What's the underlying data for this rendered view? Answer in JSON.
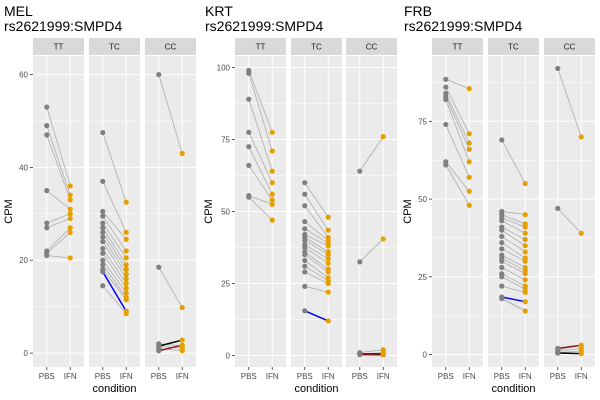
{
  "chart_data": [
    {
      "type": "line",
      "title": "MEL",
      "subtitle": "rs2621999:SMPD4",
      "xlabel": "condition",
      "ylabel": "CPM",
      "ylim": [
        -3,
        64
      ],
      "yticks": [
        0,
        20,
        40,
        60
      ],
      "x_categories": [
        "PBS",
        "IFN"
      ],
      "facets": [
        {
          "label": "TT",
          "pairs": [
            [
              53,
              36
            ],
            [
              49,
              34
            ],
            [
              47,
              33
            ],
            [
              35,
              31
            ],
            [
              28,
              30
            ],
            [
              27,
              29
            ],
            [
              22,
              27
            ],
            [
              21.5,
              26
            ],
            [
              21,
              20.5
            ]
          ],
          "highlights": []
        },
        {
          "label": "TC",
          "pairs": [
            [
              47.5,
              32.5
            ],
            [
              37,
              26
            ],
            [
              30.5,
              24.5
            ],
            [
              29.5,
              22
            ],
            [
              28,
              20.5
            ],
            [
              27,
              19
            ],
            [
              26,
              18
            ],
            [
              25,
              17
            ],
            [
              24,
              16
            ],
            [
              22.5,
              15
            ],
            [
              21.5,
              14
            ],
            [
              20,
              13
            ],
            [
              19,
              12
            ],
            [
              18,
              11.5
            ],
            [
              14.5,
              8.5
            ]
          ],
          "highlights": [
            {
              "pair": [
                17.5,
                9
              ],
              "color": "#0000ff"
            }
          ]
        },
        {
          "label": "CC",
          "pairs": [
            [
              60,
              43
            ],
            [
              18.5,
              9.8
            ],
            [
              2,
              1.5
            ],
            [
              1.5,
              1
            ],
            [
              1,
              0.5
            ]
          ],
          "highlights": [
            {
              "pair": [
                1.5,
                2.8
              ],
              "color": "#000000"
            },
            {
              "pair": [
                0.5,
                1.7
              ],
              "color": "#8b1a1a"
            }
          ]
        }
      ]
    },
    {
      "type": "line",
      "title": "KRT",
      "subtitle": "rs2621999:SMPD4",
      "xlabel": "condition",
      "ylabel": "CPM",
      "ylim": [
        -4,
        104
      ],
      "yticks": [
        0,
        25,
        50,
        75,
        100
      ],
      "x_categories": [
        "PBS",
        "IFN"
      ],
      "facets": [
        {
          "label": "TT",
          "pairs": [
            [
              99,
              77.5
            ],
            [
              98,
              71
            ],
            [
              89,
              64
            ],
            [
              77.5,
              60
            ],
            [
              72.5,
              56
            ],
            [
              66,
              54
            ],
            [
              55.5,
              52.5
            ],
            [
              55,
              47
            ]
          ],
          "highlights": []
        },
        {
          "label": "TC",
          "pairs": [
            [
              60,
              48
            ],
            [
              56,
              43.5
            ],
            [
              52,
              41
            ],
            [
              46.5,
              40
            ],
            [
              44,
              39
            ],
            [
              42,
              38
            ],
            [
              41,
              36
            ],
            [
              40,
              35
            ],
            [
              38.5,
              33.5
            ],
            [
              37.5,
              32
            ],
            [
              36,
              30
            ],
            [
              35,
              29
            ],
            [
              33,
              27
            ],
            [
              31,
              26
            ],
            [
              29,
              25
            ],
            [
              24,
              22
            ]
          ],
          "highlights": [
            {
              "pair": [
                15.5,
                12
              ],
              "color": "#0000ff"
            }
          ]
        },
        {
          "label": "CC",
          "pairs": [
            [
              64,
              76
            ],
            [
              32.5,
              40.5
            ],
            [
              1,
              2
            ],
            [
              0.5,
              1
            ]
          ],
          "highlights": [
            {
              "pair": [
                0.5,
                0.5
              ],
              "color": "#000000"
            },
            {
              "pair": [
                0.3,
                0.2
              ],
              "color": "#8b1a1a"
            }
          ]
        }
      ]
    },
    {
      "type": "line",
      "title": "FRB",
      "subtitle": "rs2621999:SMPD4",
      "xlabel": "condition",
      "ylabel": "CPM",
      "ylim": [
        -4,
        96
      ],
      "yticks": [
        0,
        25,
        50,
        75
      ],
      "x_categories": [
        "PBS",
        "IFN"
      ],
      "facets": [
        {
          "label": "TT",
          "pairs": [
            [
              88.5,
              85.5
            ],
            [
              86,
              71
            ],
            [
              84,
              68
            ],
            [
              83,
              66
            ],
            [
              82,
              62
            ],
            [
              74,
              57
            ],
            [
              62,
              52.5
            ],
            [
              61,
              48
            ]
          ],
          "highlights": []
        },
        {
          "label": "TC",
          "pairs": [
            [
              69,
              55
            ],
            [
              46,
              45
            ],
            [
              45,
              42
            ],
            [
              44,
              41
            ],
            [
              43,
              39
            ],
            [
              41,
              37
            ],
            [
              40,
              35
            ],
            [
              38,
              33
            ],
            [
              36,
              31
            ],
            [
              34,
              30
            ],
            [
              32,
              28
            ],
            [
              31,
              27
            ],
            [
              30,
              26
            ],
            [
              28,
              24
            ],
            [
              26,
              22
            ],
            [
              25,
              21
            ],
            [
              22,
              20
            ]
          ],
          "highlights": [
            {
              "pair": [
                18.5,
                17
              ],
              "color": "#0000ff"
            },
            {
              "pair": [
                18,
                14
              ],
              "color": "#bebebe"
            }
          ]
        },
        {
          "label": "CC",
          "pairs": [
            [
              92,
              70
            ],
            [
              47,
              39
            ],
            [
              1.5,
              3
            ],
            [
              1,
              2
            ],
            [
              0.5,
              1.2
            ]
          ],
          "highlights": [
            {
              "pair": [
                2,
                3
              ],
              "color": "#8b1a1a"
            },
            {
              "pair": [
                0.5,
                0.3
              ],
              "color": "#000000"
            }
          ]
        }
      ]
    }
  ],
  "colors": {
    "pbs_point": "#808080",
    "ifn_point": "#e69f00",
    "line_default": "#b3b3b3",
    "panel_bg": "#ebebeb",
    "strip_bg": "#d9d9d9",
    "grid": "#ffffff"
  }
}
